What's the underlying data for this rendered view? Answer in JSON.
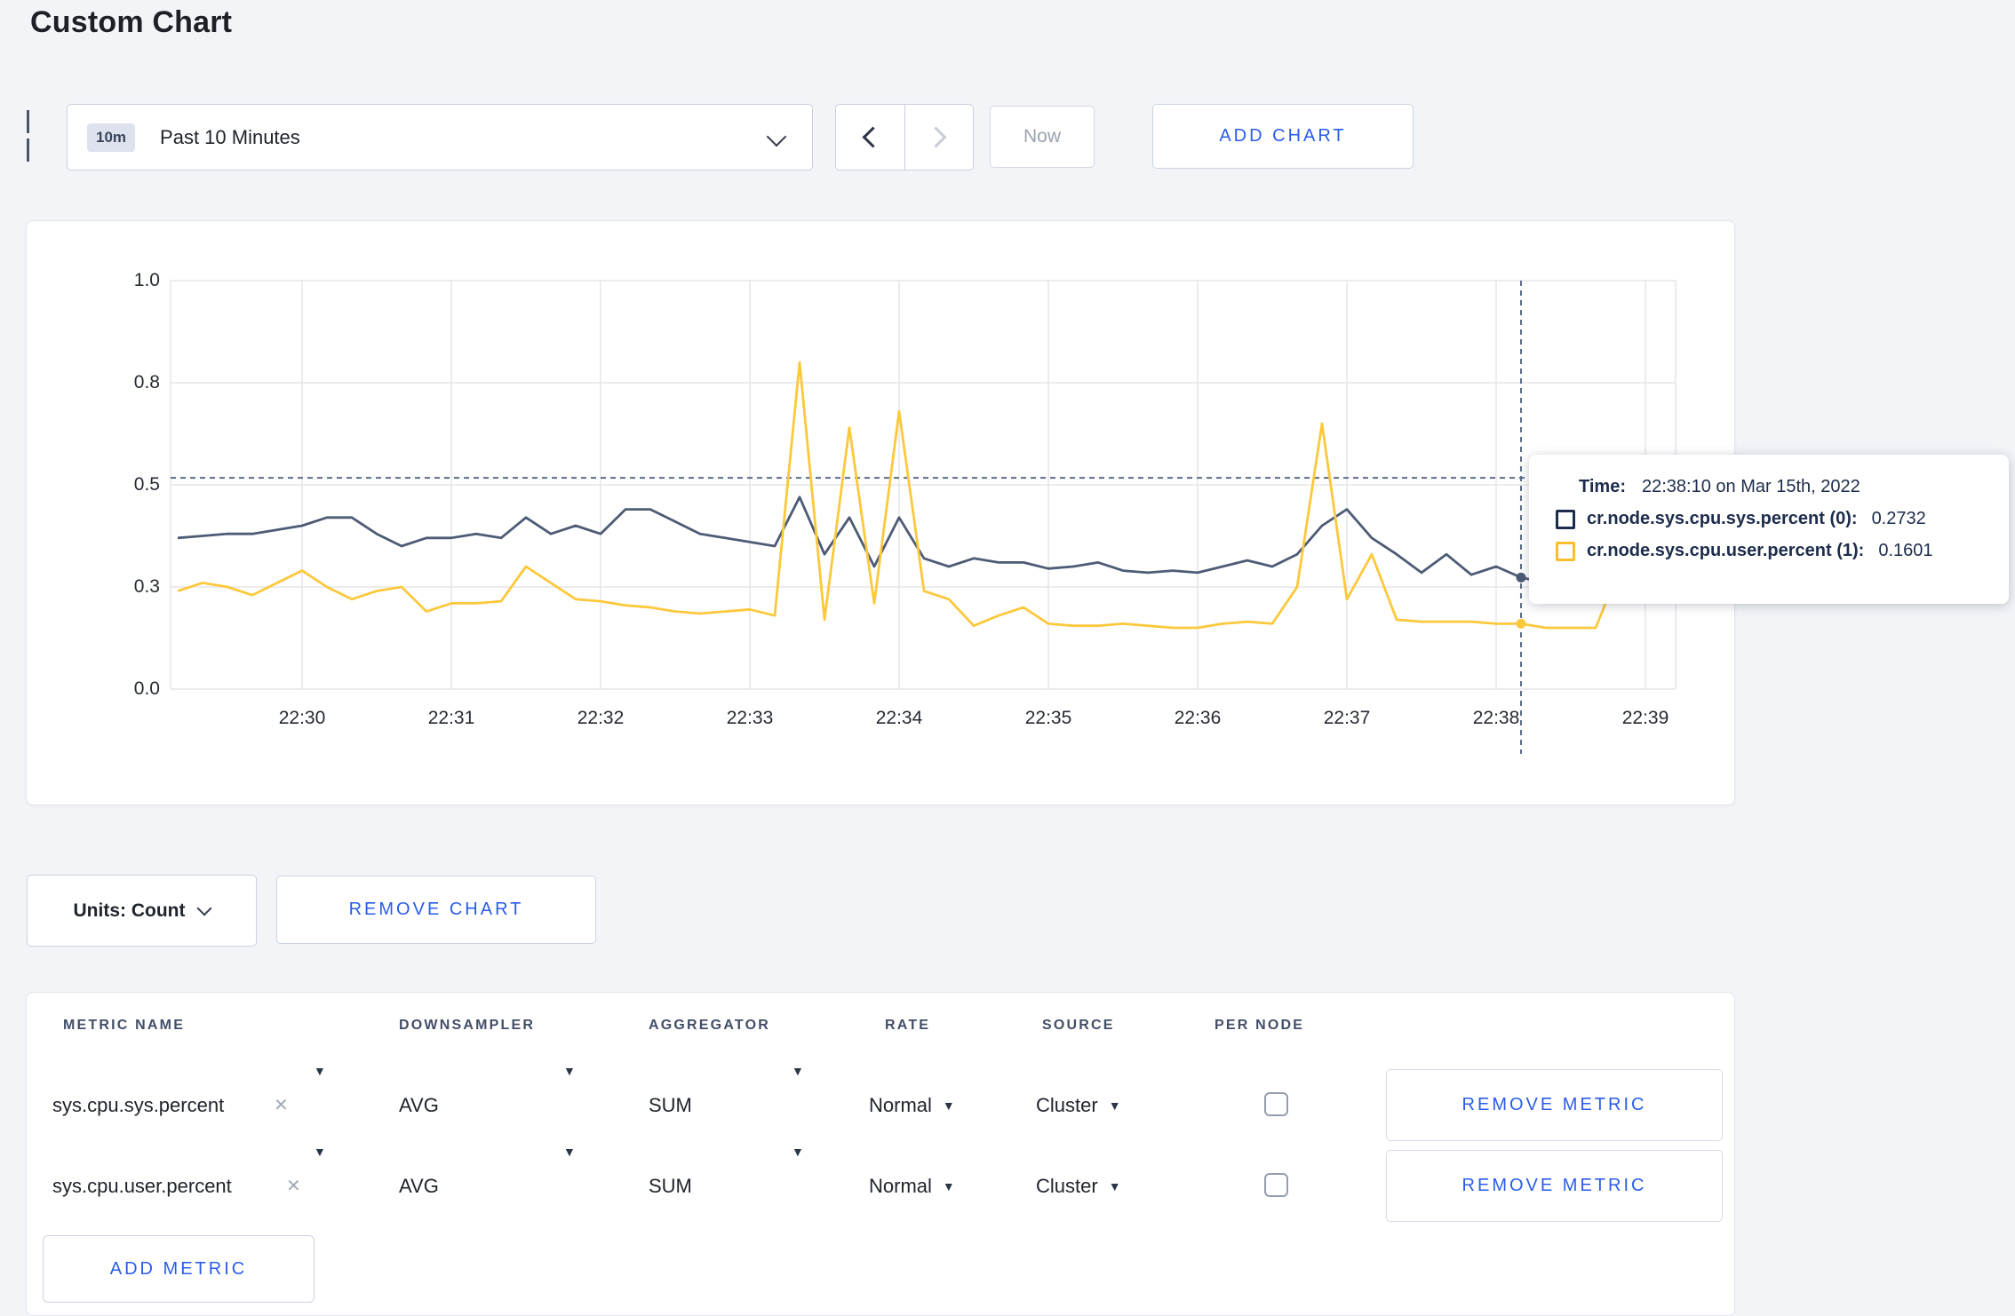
{
  "page": {
    "title": "Custom Chart"
  },
  "toolbar": {
    "range_badge": "10m",
    "range_label": "Past 10 Minutes",
    "now_label": "Now",
    "add_chart_label": "ADD CHART"
  },
  "chart_data": {
    "type": "line",
    "x_start": "22:29:10",
    "x_interval_seconds": 10,
    "x_tick_labels": [
      "22:30",
      "22:31",
      "22:32",
      "22:33",
      "22:34",
      "22:35",
      "22:36",
      "22:37",
      "22:38",
      "22:39"
    ],
    "y_tick_labels": [
      "0.0",
      "0.3",
      "0.5",
      "0.8",
      "1.0"
    ],
    "y_tick_values": [
      0,
      0.25,
      0.5,
      0.75,
      1
    ],
    "ylim": [
      0,
      1
    ],
    "grid": true,
    "legend_position": "tooltip",
    "series": [
      {
        "name": "cr.node.sys.cpu.sys.percent",
        "color": "#4d5b75",
        "values": [
          0.37,
          0.375,
          0.38,
          0.38,
          0.39,
          0.4,
          0.42,
          0.42,
          0.38,
          0.35,
          0.37,
          0.37,
          0.38,
          0.37,
          0.42,
          0.38,
          0.4,
          0.38,
          0.44,
          0.44,
          0.41,
          0.38,
          0.37,
          0.36,
          0.35,
          0.47,
          0.33,
          0.42,
          0.3,
          0.42,
          0.32,
          0.3,
          0.32,
          0.31,
          0.31,
          0.295,
          0.3,
          0.31,
          0.29,
          0.285,
          0.29,
          0.285,
          0.3,
          0.315,
          0.3,
          0.33,
          0.4,
          0.44,
          0.37,
          0.33,
          0.285,
          0.33,
          0.28,
          0.3,
          0.2732,
          0.26,
          0.28,
          0.315,
          0.3,
          0.295,
          0.31
        ]
      },
      {
        "name": "cr.node.sys.cpu.user.percent",
        "color": "#fcc83c",
        "values": [
          0.24,
          0.26,
          0.25,
          0.23,
          0.26,
          0.29,
          0.25,
          0.22,
          0.24,
          0.25,
          0.19,
          0.21,
          0.21,
          0.215,
          0.3,
          0.26,
          0.22,
          0.215,
          0.205,
          0.2,
          0.19,
          0.185,
          0.19,
          0.195,
          0.18,
          0.8,
          0.17,
          0.64,
          0.21,
          0.68,
          0.24,
          0.22,
          0.155,
          0.18,
          0.2,
          0.16,
          0.155,
          0.155,
          0.16,
          0.155,
          0.15,
          0.15,
          0.16,
          0.165,
          0.16,
          0.25,
          0.65,
          0.22,
          0.33,
          0.17,
          0.165,
          0.165,
          0.165,
          0.16,
          0.1601,
          0.15,
          0.15,
          0.15,
          0.3,
          0.22,
          0.28
        ]
      }
    ],
    "crosshair": {
      "x_index": 54,
      "time": "22:38:10",
      "mouse_y_value": 0.517,
      "point_values": [
        0.2732,
        0.1601
      ]
    }
  },
  "tooltip": {
    "time_label": "Time:",
    "time_value": "22:38:10 on Mar 15th, 2022",
    "entries": [
      {
        "label": "cr.node.sys.cpu.sys.percent (0):",
        "value": "0.2732",
        "color": "#1d2c4c"
      },
      {
        "label": "cr.node.sys.cpu.user.percent (1):",
        "value": "0.1601",
        "color": "#fdbe2e"
      }
    ]
  },
  "units_bar": {
    "units_label": "Units: Count",
    "remove_chart_label": "REMOVE CHART"
  },
  "metrics_table": {
    "headers": [
      "METRIC NAME",
      "DOWNSAMPLER",
      "AGGREGATOR",
      "RATE",
      "SOURCE",
      "PER NODE"
    ],
    "rows": [
      {
        "metric": "sys.cpu.sys.percent",
        "downsampler": "AVG",
        "aggregator": "SUM",
        "rate": "Normal",
        "source": "Cluster",
        "per_node_checked": false,
        "remove_label": "REMOVE METRIC"
      },
      {
        "metric": "sys.cpu.user.percent",
        "downsampler": "AVG",
        "aggregator": "SUM",
        "rate": "Normal",
        "source": "Cluster",
        "per_node_checked": false,
        "remove_label": "REMOVE METRIC"
      }
    ],
    "add_metric_label": "ADD METRIC"
  },
  "colors": {
    "accent_blue": "#2a5cea",
    "series_sys": "#4d5b75",
    "series_user": "#fcc83c",
    "crosshair": "#5c6c8a",
    "grid": "#e5e6e9",
    "page_background": "#f3f4f8"
  }
}
